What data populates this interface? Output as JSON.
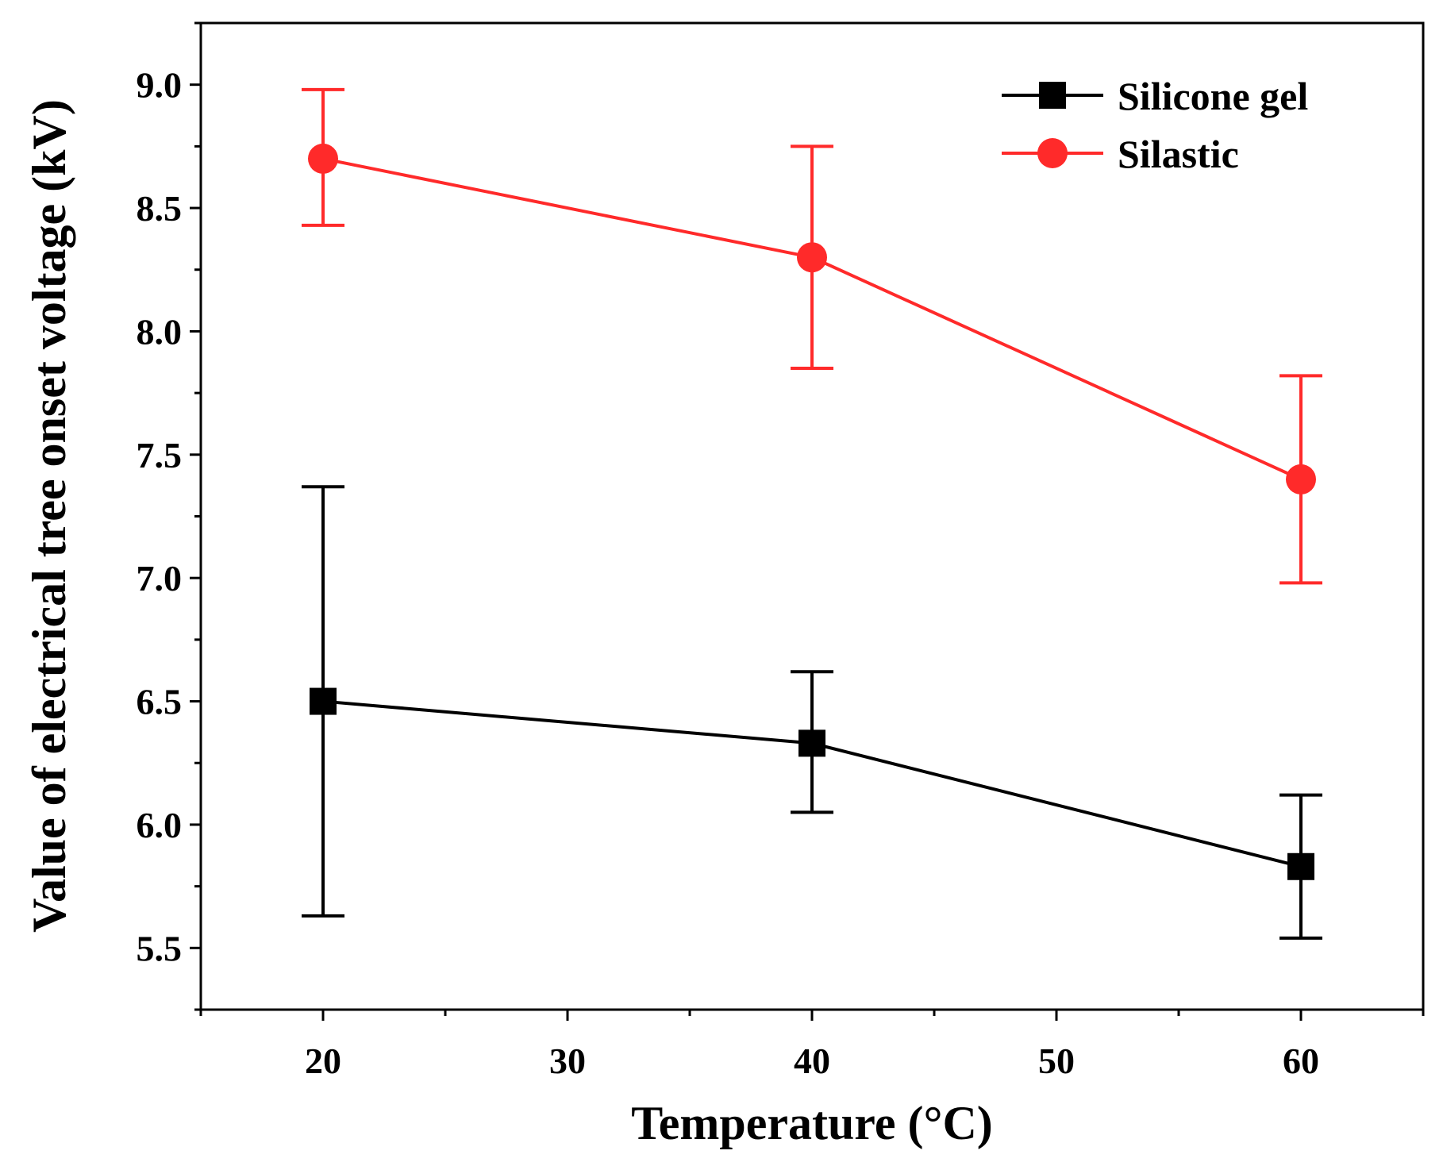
{
  "chart_data": {
    "type": "line",
    "title": "",
    "xlabel": "Temperature (°C)",
    "ylabel": "Value of electrical tree onset voltage (kV)",
    "xlim": [
      15,
      65
    ],
    "ylim": [
      5.25,
      9.25
    ],
    "xticks": [
      20,
      30,
      40,
      50,
      60
    ],
    "xtick_labels": [
      "20",
      "30",
      "40",
      "50",
      "60"
    ],
    "yticks": [
      5.5,
      6.0,
      6.5,
      7.0,
      7.5,
      8.0,
      8.5,
      9.0
    ],
    "ytick_labels": [
      "5.5",
      "6.0",
      "6.5",
      "7.0",
      "7.5",
      "8.0",
      "8.5",
      "9.0"
    ],
    "grid": false,
    "legend_position": "top-right",
    "series": [
      {
        "name": "Silicone gel",
        "color": "#000000",
        "marker": "square",
        "x": [
          20,
          40,
          60
        ],
        "y": [
          6.5,
          6.33,
          5.83
        ],
        "err_low": [
          5.63,
          6.05,
          5.54
        ],
        "err_high": [
          7.37,
          6.62,
          6.12
        ]
      },
      {
        "name": "Silastic",
        "color": "#ff2a2a",
        "marker": "circle",
        "x": [
          20,
          40,
          60
        ],
        "y": [
          8.7,
          8.3,
          7.4
        ],
        "err_low": [
          8.43,
          7.85,
          6.98
        ],
        "err_high": [
          8.98,
          8.75,
          7.82
        ]
      }
    ]
  }
}
